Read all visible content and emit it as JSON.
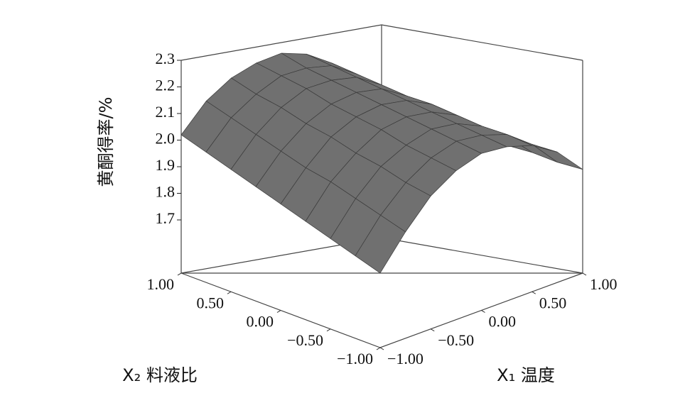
{
  "chart_data": {
    "type": "surface3d",
    "x_label": "X₁ 温度",
    "y_label": "X₂ 料液比",
    "z_label": "黄酮得率/%",
    "x": [
      -1,
      -0.75,
      -0.5,
      -0.25,
      0,
      0.25,
      0.5,
      0.75,
      1
    ],
    "y": [
      -1,
      -0.75,
      -0.5,
      -0.25,
      0,
      0.25,
      0.5,
      0.75,
      1
    ],
    "z": [
      [
        1.78,
        1.9,
        2.0,
        2.06,
        2.09,
        2.08,
        2.05,
        1.99,
        1.89
      ],
      [
        1.81,
        1.93,
        2.02,
        2.08,
        2.11,
        2.1,
        2.07,
        2.0,
        1.9
      ],
      [
        1.84,
        1.96,
        2.05,
        2.1,
        2.13,
        2.12,
        2.08,
        2.01,
        1.92
      ],
      [
        1.87,
        1.99,
        2.07,
        2.13,
        2.15,
        2.14,
        2.1,
        2.03,
        1.93
      ],
      [
        1.9,
        2.01,
        2.1,
        2.15,
        2.17,
        2.16,
        2.12,
        2.04,
        1.94
      ],
      [
        1.93,
        2.04,
        2.12,
        2.17,
        2.19,
        2.18,
        2.13,
        2.06,
        1.95
      ],
      [
        1.96,
        2.07,
        2.15,
        2.2,
        2.21,
        2.2,
        2.15,
        2.07,
        1.97
      ],
      [
        1.99,
        2.1,
        2.17,
        2.22,
        2.23,
        2.22,
        2.17,
        2.09,
        1.98
      ],
      [
        2.02,
        2.13,
        2.2,
        2.24,
        2.26,
        2.24,
        2.19,
        2.1,
        1.99
      ]
    ],
    "xlim": [
      -1,
      1
    ],
    "ylim": [
      -1,
      1
    ],
    "zlim": [
      1.5,
      2.3
    ],
    "xticks": [
      {
        "value": -1,
        "label": "−1.00"
      },
      {
        "value": -0.5,
        "label": "−0.50"
      },
      {
        "value": 0,
        "label": "0.00"
      },
      {
        "value": 0.5,
        "label": "0.50"
      },
      {
        "value": 1,
        "label": "1.00"
      }
    ],
    "yticks": [
      {
        "value": -1,
        "label": "−1.00"
      },
      {
        "value": -0.5,
        "label": "−0.50"
      },
      {
        "value": 0,
        "label": "0.00"
      },
      {
        "value": 0.5,
        "label": "0.50"
      },
      {
        "value": 1,
        "label": "1.00"
      }
    ],
    "zticks": [
      1.7,
      1.8,
      1.9,
      {
        "value": 2,
        "label": "2.0"
      },
      2.1,
      2.2,
      2.3
    ],
    "color": "#707070"
  }
}
